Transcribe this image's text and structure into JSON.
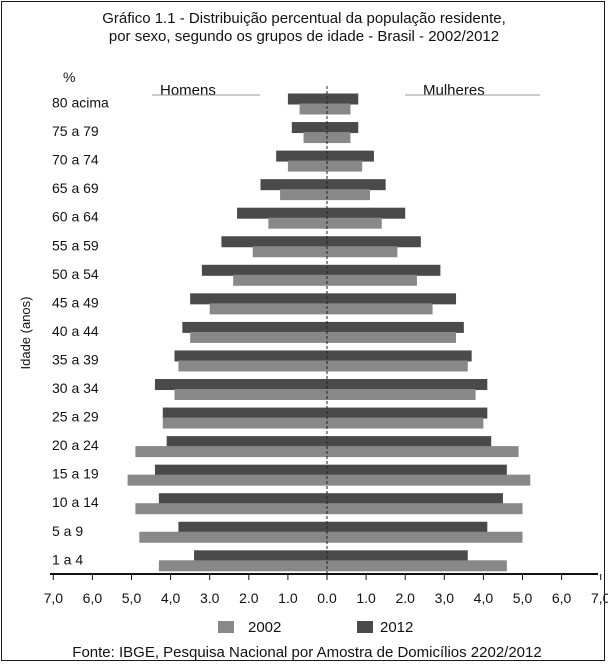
{
  "chart_data": {
    "type": "bar",
    "subtype": "population-pyramid",
    "title": "Gráfico 1.1 - Distribuição percentual da população residente,",
    "subtitle": "por sexo, segundo os grupos de idade - Brasil - 2002/2012",
    "unit_label": "%",
    "ylabel": "Idade (anos)",
    "side_labels": {
      "left": "Homens",
      "right": "Mulheres"
    },
    "categories": [
      "80 acima",
      "75 a 79",
      "70 a 74",
      "65 a 69",
      "60 a 64",
      "55 a 59",
      "50 a 54",
      "45 a 49",
      "40 a 44",
      "35 a 39",
      "30 a 34",
      "25 a 29",
      "20 a 24",
      "15 a 19",
      "10 a 14",
      "5 a 9",
      "1 a 4"
    ],
    "x_ticks": [
      "7,0",
      "6,0",
      "5,0",
      "4,0",
      "3.0",
      "2.0",
      "1.0",
      "0.0",
      "1.0",
      "2.0",
      "3,0",
      "4,0",
      "5,0",
      "6,0",
      "7,0"
    ],
    "xlim": [
      -7,
      7
    ],
    "grid": false,
    "legend_position": "bottom",
    "series": [
      {
        "name": "2002",
        "color": "#888888",
        "homens": [
          0.7,
          0.6,
          1.0,
          1.2,
          1.5,
          1.9,
          2.4,
          3.0,
          3.5,
          3.8,
          3.9,
          4.2,
          4.9,
          5.1,
          4.9,
          4.8,
          4.3
        ],
        "mulheres": [
          0.6,
          0.6,
          0.9,
          1.1,
          1.4,
          1.8,
          2.3,
          2.7,
          3.3,
          3.6,
          3.8,
          4.0,
          4.9,
          5.2,
          5.0,
          5.0,
          4.6
        ]
      },
      {
        "name": "2012",
        "color": "#4a4a4a",
        "homens": [
          1.0,
          0.9,
          1.3,
          1.7,
          2.3,
          2.7,
          3.2,
          3.5,
          3.7,
          3.9,
          4.4,
          4.2,
          4.1,
          4.4,
          4.3,
          3.8,
          3.4
        ],
        "mulheres": [
          0.8,
          0.8,
          1.2,
          1.5,
          2.0,
          2.4,
          2.9,
          3.3,
          3.5,
          3.7,
          4.1,
          4.1,
          4.2,
          4.6,
          4.5,
          4.1,
          3.6
        ]
      }
    ],
    "source": "Fonte: IBGE, Pesquisa Nacional por Amostra de Domicílios 2202/2012"
  }
}
